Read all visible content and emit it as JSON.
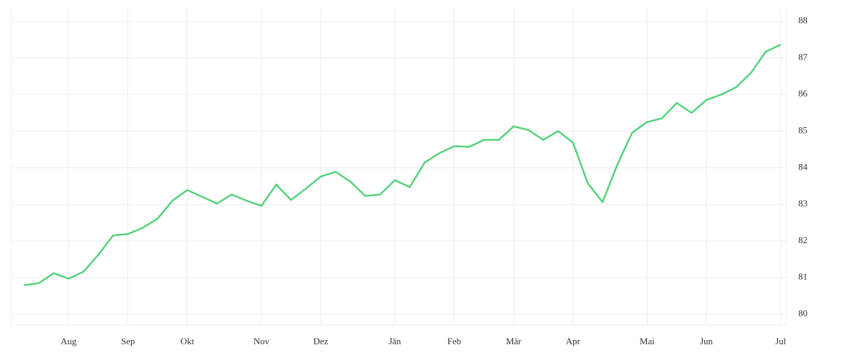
{
  "chart_data": {
    "type": "line",
    "categories": [
      null,
      null,
      null,
      "Aug",
      null,
      null,
      null,
      "Sep",
      null,
      null,
      null,
      "Okt",
      null,
      null,
      null,
      null,
      "Nov",
      null,
      null,
      null,
      "Dez",
      null,
      null,
      null,
      null,
      "Jän",
      null,
      null,
      null,
      "Feb",
      null,
      null,
      null,
      "Mär",
      null,
      null,
      null,
      "Apr",
      null,
      null,
      null,
      null,
      "Mai",
      null,
      null,
      null,
      "Jun",
      null,
      null,
      null,
      null,
      "Jul"
    ],
    "series": [
      {
        "color": "#55d27c",
        "values": [
          80.79,
          80.85,
          81.12,
          80.97,
          81.16,
          81.62,
          82.15,
          82.19,
          82.36,
          82.61,
          83.1,
          83.39,
          83.21,
          83.02,
          83.27,
          83.1,
          82.96,
          83.54,
          83.12,
          83.43,
          83.76,
          83.89,
          83.62,
          83.23,
          83.27,
          83.66,
          83.47,
          84.14,
          84.4,
          84.59,
          84.57,
          84.76,
          84.76,
          85.13,
          85.03,
          84.76,
          85.0,
          84.69,
          83.58,
          83.06,
          84.09,
          84.96,
          85.25,
          85.35,
          85.77,
          85.5,
          85.85,
          86.0,
          86.2,
          86.59,
          87.17,
          87.36
        ]
      }
    ],
    "ylim": [
      79.7,
      88.35
    ],
    "yticks": [
      80,
      81,
      82,
      83,
      84,
      85,
      86,
      87,
      88
    ],
    "grid": true
  }
}
